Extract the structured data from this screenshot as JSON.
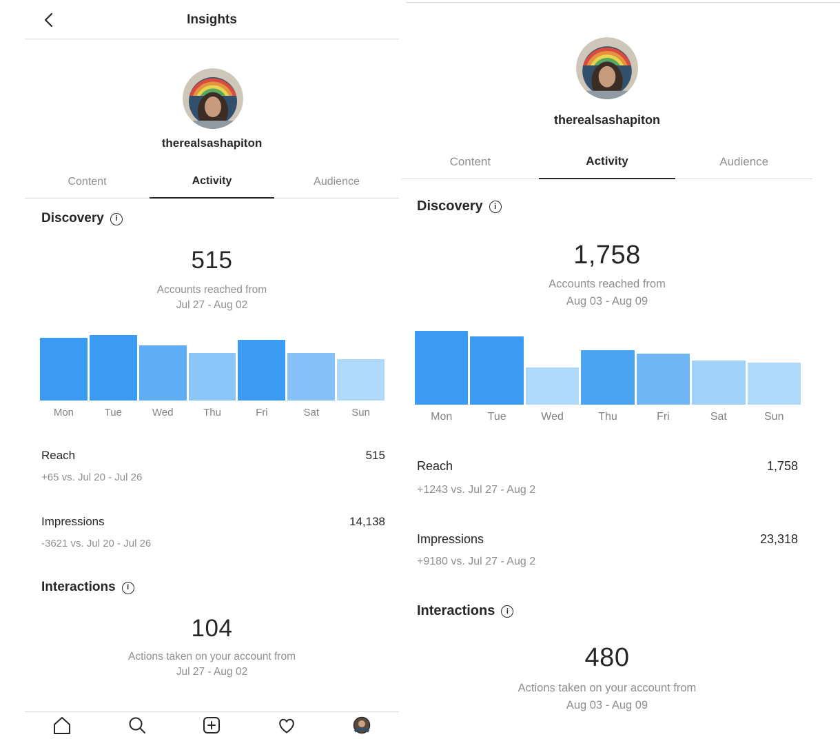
{
  "chart_data": [
    {
      "type": "bar",
      "title": "Accounts reached by day (Jul 27 - Aug 02)",
      "categories": [
        "Mon",
        "Tue",
        "Wed",
        "Thu",
        "Fri",
        "Sat",
        "Sun"
      ],
      "values": [
        90,
        94,
        79,
        68,
        87,
        68,
        59
      ],
      "values_note": "bars carry no numeric labels in the UI; values are estimated relative heights",
      "colors": [
        "#3b9bf3",
        "#3b9bf3",
        "#5fadf5",
        "#8cc5f8",
        "#3b9bf3",
        "#85c1f7",
        "#aed9fb"
      ],
      "xlabel": "",
      "ylabel": "",
      "grid": false,
      "legend": false
    },
    {
      "type": "bar",
      "title": "Accounts reached by day (Aug 03 - Aug 09)",
      "categories": [
        "Mon",
        "Tue",
        "Wed",
        "Thu",
        "Fri",
        "Sat",
        "Sun"
      ],
      "values": [
        106,
        98,
        54,
        78,
        73,
        63,
        60
      ],
      "values_note": "bars carry no numeric labels in the UI; values are estimated relative heights",
      "colors": [
        "#3b9bf3",
        "#3b9bf3",
        "#aed9fb",
        "#4aa3f3",
        "#6fb6f6",
        "#9fd1f9",
        "#aed9fb"
      ],
      "xlabel": "",
      "ylabel": "",
      "grid": false,
      "legend": false
    }
  ],
  "left_panel": {
    "header": {
      "title": "Insights",
      "back_icon": "chevron-left"
    },
    "profile": {
      "username": "therealsashapiton"
    },
    "tabs": [
      {
        "label": "Content",
        "active": false
      },
      {
        "label": "Activity",
        "active": true
      },
      {
        "label": "Audience",
        "active": false
      }
    ],
    "discovery": {
      "heading": "Discovery",
      "metric_value": "515",
      "caption_line1": "Accounts reached from",
      "caption_line2": "Jul 27 - Aug 02",
      "reach": {
        "label": "Reach",
        "value": "515",
        "delta": "+65 vs. Jul 20 - Jul 26"
      },
      "impressions": {
        "label": "Impressions",
        "value": "14,138",
        "delta": "-3621 vs. Jul 20 - Jul 26"
      }
    },
    "interactions": {
      "heading": "Interactions",
      "metric_value": "104",
      "caption_line1": "Actions taken on your account from",
      "caption_line2": "Jul 27 - Aug 02"
    },
    "bottom_nav": [
      "home",
      "search",
      "new-post",
      "activity-heart",
      "profile"
    ]
  },
  "right_panel": {
    "profile": {
      "username": "therealsashapiton"
    },
    "tabs": [
      {
        "label": "Content",
        "active": false
      },
      {
        "label": "Activity",
        "active": true
      },
      {
        "label": "Audience",
        "active": false
      }
    ],
    "discovery": {
      "heading": "Discovery",
      "metric_value": "1,758",
      "caption_line1": "Accounts reached from",
      "caption_line2": "Aug 03 - Aug 09",
      "reach": {
        "label": "Reach",
        "value": "1,758",
        "delta": "+1243 vs. Jul 27 - Aug 2"
      },
      "impressions": {
        "label": "Impressions",
        "value": "23,318",
        "delta": "+9180 vs. Jul 27 - Aug 2"
      }
    },
    "interactions": {
      "heading": "Interactions",
      "metric_value": "480",
      "caption_line1": "Actions taken on your account from",
      "caption_line2": "Aug 03 - Aug 09"
    }
  },
  "colors": {
    "text": "#262626",
    "muted": "#8e8e8e",
    "divider": "#dbdbdb",
    "accent_blue": "#3b9bf3"
  }
}
